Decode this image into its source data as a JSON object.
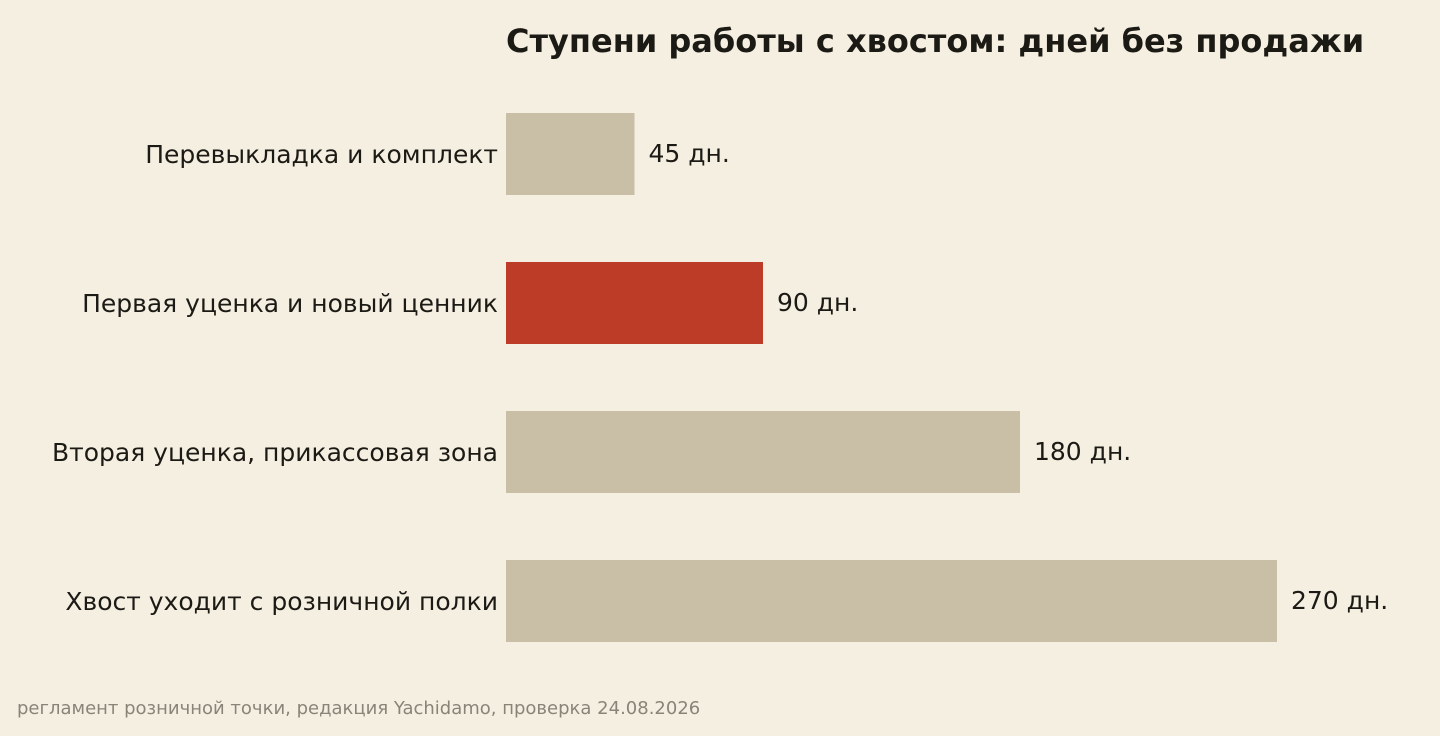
{
  "chart_data": {
    "type": "bar",
    "orientation": "horizontal",
    "title": "Ступени работы с хвостом: дней без продажи",
    "categories": [
      "Перевыкладка и комплект",
      "Первая уценка и новый ценник",
      "Вторая уценка, прикассовая зона",
      "Хвост уходит с розничной полки"
    ],
    "values": [
      45,
      90,
      180,
      270
    ],
    "value_labels": [
      "45 дн.",
      "90 дн.",
      "180 дн.",
      "270 дн."
    ],
    "highlight_index": 1,
    "xlim": [
      0,
      270
    ],
    "grid": false,
    "legend": "none",
    "colors": {
      "bar": "#c9bfa6",
      "highlight": "#bc3c28",
      "background": "#f5efe2",
      "text": "#1c1a14",
      "source_text": "#8a8478"
    }
  },
  "source": "регламент розничной точки, редакция Yachidamo, проверка 24.08.2026"
}
